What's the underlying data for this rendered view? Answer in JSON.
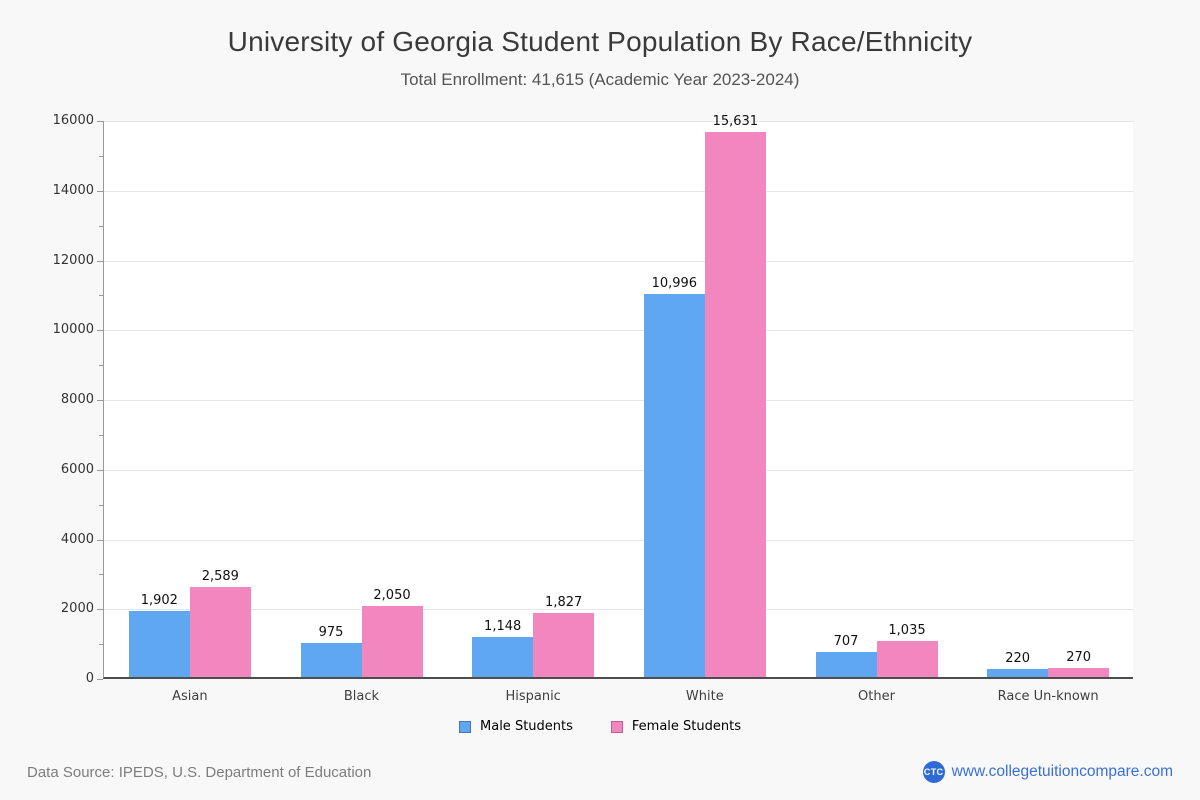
{
  "header": {
    "title": "University of Georgia Student Population By Race/Ethnicity",
    "subtitle": "Total Enrollment: 41,615 (Academic Year 2023-2024)"
  },
  "chart_data": {
    "type": "bar",
    "title": "University of Georgia Student Population By Race/Ethnicity",
    "subtitle": "Total Enrollment: 41,615 (Academic Year 2023-2024)",
    "categories": [
      "Asian",
      "Black",
      "Hispanic",
      "White",
      "Other",
      "Race Un-known"
    ],
    "series": [
      {
        "name": "Male Students",
        "color": "#5FA7F0",
        "border_color": "#4478B6",
        "values": [
          1902,
          975,
          1148,
          10996,
          707,
          220
        ]
      },
      {
        "name": "Female Students",
        "color": "#F187BE",
        "border_color": "#C05E92",
        "values": [
          2589,
          2050,
          1827,
          15631,
          1035,
          270
        ]
      }
    ],
    "xlabel": "",
    "ylabel": "",
    "ylim": [
      0,
      16000
    ],
    "ytick_step": 2000,
    "minor_tick_step": 1000,
    "grid": true,
    "legend_position": "bottom",
    "bar_value_labels": true,
    "plot_background": "#ffffff",
    "page_background": "#f8f8f8",
    "gridline_color": "#e6e6e6"
  },
  "footer": {
    "source": "Data Source: IPEDS, U.S. Department of Education",
    "logo_text": "CTC",
    "logo_color": "#2E6BD4",
    "website": "www.collegetuitioncompare.com",
    "link_color": "#3B6FD8"
  }
}
